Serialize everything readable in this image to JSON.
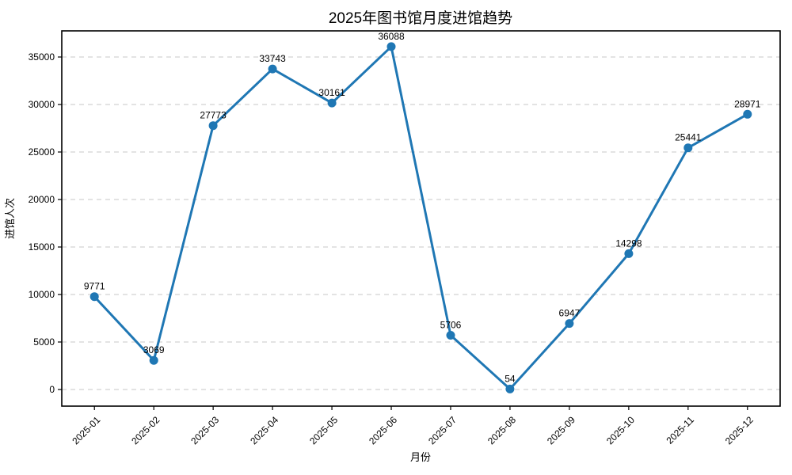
{
  "chart_data": {
    "type": "line",
    "title": "2025年图书馆月度进馆趋势",
    "xlabel": "月份",
    "ylabel": "进馆人次",
    "categories": [
      "2025-01",
      "2025-02",
      "2025-03",
      "2025-04",
      "2025-05",
      "2025-06",
      "2025-07",
      "2025-08",
      "2025-09",
      "2025-10",
      "2025-11",
      "2025-12"
    ],
    "series": [
      {
        "name": "进馆人次",
        "values": [
          9771,
          3069,
          27773,
          33743,
          30161,
          36088,
          5706,
          54,
          6947,
          14298,
          25441,
          28971
        ]
      }
    ],
    "data_labels": [
      9771,
      3069,
      27773,
      33743,
      30161,
      36088,
      5706,
      54,
      6947,
      14298,
      25441,
      28971
    ],
    "yticks": [
      0,
      5000,
      10000,
      15000,
      20000,
      25000,
      30000,
      35000
    ],
    "ylim": [
      -1750,
      37750
    ],
    "xlim": [
      -0.55,
      11.55
    ],
    "grid": true,
    "grid_style": "dashed",
    "legend": "none",
    "colors": {
      "line": "#1f77b4",
      "marker": "#1f77b4",
      "grid": "#c7c7c7",
      "spine": "#000000",
      "text": "#000000"
    }
  }
}
